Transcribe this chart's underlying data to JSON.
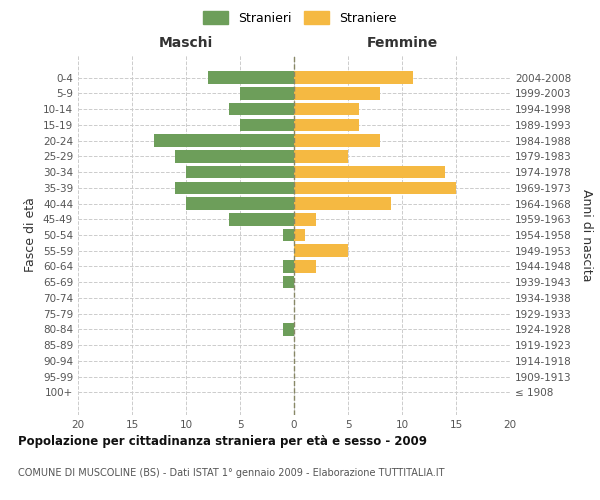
{
  "age_groups": [
    "100+",
    "95-99",
    "90-94",
    "85-89",
    "80-84",
    "75-79",
    "70-74",
    "65-69",
    "60-64",
    "55-59",
    "50-54",
    "45-49",
    "40-44",
    "35-39",
    "30-34",
    "25-29",
    "20-24",
    "15-19",
    "10-14",
    "5-9",
    "0-4"
  ],
  "birth_years": [
    "≤ 1908",
    "1909-1913",
    "1914-1918",
    "1919-1923",
    "1924-1928",
    "1929-1933",
    "1934-1938",
    "1939-1943",
    "1944-1948",
    "1949-1953",
    "1954-1958",
    "1959-1963",
    "1964-1968",
    "1969-1973",
    "1974-1978",
    "1979-1983",
    "1984-1988",
    "1989-1993",
    "1994-1998",
    "1999-2003",
    "2004-2008"
  ],
  "males": [
    0,
    0,
    0,
    0,
    1,
    0,
    0,
    1,
    1,
    0,
    1,
    6,
    10,
    11,
    10,
    11,
    13,
    5,
    6,
    5,
    8
  ],
  "females": [
    0,
    0,
    0,
    0,
    0,
    0,
    0,
    0,
    2,
    5,
    1,
    2,
    9,
    15,
    14,
    5,
    8,
    6,
    6,
    8,
    11
  ],
  "male_color": "#6d9e5a",
  "female_color": "#f5b942",
  "background_color": "#ffffff",
  "grid_color": "#cccccc",
  "title": "Popolazione per cittadinanza straniera per età e sesso - 2009",
  "subtitle": "COMUNE DI MUSCOLINE (BS) - Dati ISTAT 1° gennaio 2009 - Elaborazione TUTTITALIA.IT",
  "xlabel_left": "Maschi",
  "xlabel_right": "Femmine",
  "ylabel_left": "Fasce di età",
  "ylabel_right": "Anni di nascita",
  "legend_male": "Stranieri",
  "legend_female": "Straniere",
  "xlim": 20,
  "bar_height": 0.8
}
